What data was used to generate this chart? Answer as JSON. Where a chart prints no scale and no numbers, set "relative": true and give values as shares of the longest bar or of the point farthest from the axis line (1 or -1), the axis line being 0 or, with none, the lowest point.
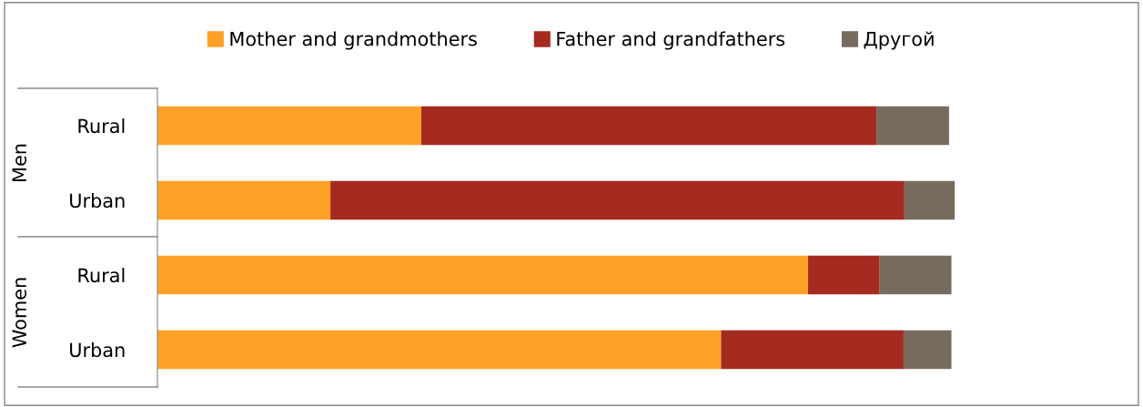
{
  "chart_data": {
    "type": "bar",
    "orientation": "horizontal",
    "stacked": true,
    "relative": true,
    "legend": "top",
    "grid": false,
    "categories": [
      "Rural",
      "Urban",
      "Rural",
      "Urban"
    ],
    "annotations": [
      "Men",
      "Women"
    ],
    "series": [
      {
        "name": "Mother and grandmothers",
        "color": "#ffa126",
        "values": [
          0.331,
          0.217,
          0.816,
          0.707
        ]
      },
      {
        "name": "Father and grandfathers",
        "color": "#a52a1f",
        "values": [
          0.571,
          0.72,
          0.09,
          0.229
        ]
      },
      {
        "name": "Другой",
        "color": "#776b5d",
        "values": [
          0.091,
          0.063,
          0.09,
          0.06
        ]
      }
    ]
  }
}
